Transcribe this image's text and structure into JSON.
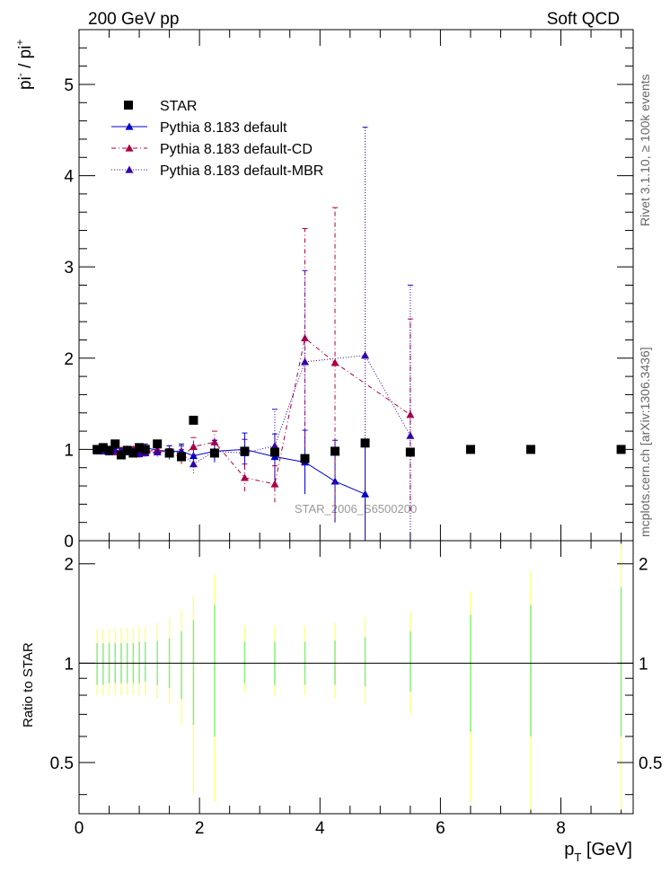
{
  "header": {
    "left_title": "200 GeV pp",
    "right_title": "Soft QCD",
    "side_rivet": "Rivet 3.1.10, ≥ 100k events",
    "side_mcplots": "mcplots.cern.ch [arXiv:1306.3436]",
    "watermark": "STAR_2006_S6500200"
  },
  "colors": {
    "data": "#000000",
    "default": "#0000cc",
    "cd": "#aa0044",
    "mbr": "#3300aa",
    "band_yellow": "#ffff88",
    "band_green": "#88ee88"
  },
  "chart_data": [
    {
      "type": "scatter",
      "name": "main",
      "ylabel_parts": [
        "pi",
        "-",
        " / pi",
        "+"
      ],
      "xlim": [
        0,
        9.2
      ],
      "ylim": [
        0,
        5.6
      ],
      "yticks": [
        0,
        1,
        2,
        3,
        4,
        5
      ],
      "ytick_labels": [
        "0",
        "1",
        "2",
        "3",
        "4",
        "5"
      ],
      "legend": [
        "STAR",
        "Pythia 8.183 default",
        "Pythia 8.183 default-CD",
        "Pythia 8.183 default-MBR"
      ],
      "series": [
        {
          "name": "STAR",
          "key": "data",
          "marker": "square",
          "x": [
            0.3,
            0.4,
            0.5,
            0.6,
            0.7,
            0.8,
            0.9,
            1.0,
            1.1,
            1.3,
            1.5,
            1.7,
            1.9,
            2.25,
            2.75,
            3.25,
            3.75,
            4.25,
            4.75,
            5.5,
            6.5,
            7.5,
            9.0
          ],
          "y": [
            1.0,
            1.02,
            0.99,
            1.06,
            0.94,
            0.99,
            0.96,
            1.02,
            1.0,
            1.06,
            0.96,
            0.92,
            1.32,
            0.96,
            0.98,
            0.97,
            0.9,
            0.98,
            1.07,
            0.97,
            1.0,
            1.0,
            1.0
          ]
        },
        {
          "name": "Pythia 8.183 default",
          "key": "default",
          "marker": "triangle",
          "dash": "",
          "x": [
            0.3,
            0.4,
            0.5,
            0.6,
            0.7,
            0.8,
            0.9,
            1.0,
            1.1,
            1.3,
            1.5,
            1.7,
            1.9,
            2.25,
            2.75,
            3.25,
            3.75,
            4.25,
            4.75
          ],
          "y": [
            0.98,
            0.99,
            1.0,
            0.99,
            0.98,
            1.0,
            0.99,
            1.0,
            1.02,
            0.99,
            0.98,
            0.98,
            0.93,
            0.98,
            1.0,
            0.92,
            0.86,
            0.65,
            0.51
          ],
          "err": [
            0.02,
            0.02,
            0.02,
            0.02,
            0.02,
            0.03,
            0.03,
            0.04,
            0.04,
            0.05,
            0.06,
            0.08,
            0.1,
            0.12,
            0.18,
            0.25,
            0.35,
            0.45,
            0.6
          ]
        },
        {
          "name": "Pythia 8.183 default-CD",
          "key": "cd",
          "marker": "triangle",
          "dash": "5,3,1,3",
          "x": [
            0.3,
            0.4,
            0.5,
            0.6,
            0.7,
            0.8,
            0.9,
            1.0,
            1.1,
            1.3,
            1.5,
            1.7,
            1.9,
            2.25,
            2.75,
            3.25,
            3.75,
            4.25,
            5.5
          ],
          "y": [
            0.99,
            0.98,
            1.0,
            0.97,
            0.99,
            0.98,
            1.0,
            0.96,
            0.97,
            1.0,
            0.95,
            0.92,
            1.03,
            1.08,
            0.69,
            0.62,
            2.22,
            1.95,
            1.38
          ],
          "err": [
            0.02,
            0.02,
            0.02,
            0.02,
            0.03,
            0.03,
            0.03,
            0.04,
            0.04,
            0.05,
            0.06,
            0.08,
            0.1,
            0.12,
            0.15,
            0.2,
            1.2,
            1.7,
            1.05
          ]
        },
        {
          "name": "Pythia 8.183 default-MBR",
          "key": "mbr",
          "marker": "triangle",
          "dash": "1,2",
          "x": [
            0.3,
            0.4,
            0.5,
            0.6,
            0.7,
            0.8,
            0.9,
            1.0,
            1.1,
            1.3,
            1.5,
            1.7,
            1.9,
            2.25,
            2.75,
            3.25,
            3.75,
            4.75,
            5.5
          ],
          "y": [
            0.98,
            0.98,
            0.97,
            0.99,
            0.98,
            0.97,
            0.98,
            0.95,
            0.96,
            0.97,
            0.98,
            0.96,
            0.84,
            0.98,
            0.96,
            1.04,
            1.96,
            2.03,
            1.15
          ],
          "err": [
            0.02,
            0.02,
            0.02,
            0.02,
            0.03,
            0.03,
            0.03,
            0.04,
            0.04,
            0.05,
            0.06,
            0.08,
            0.1,
            0.12,
            0.15,
            0.4,
            1.0,
            2.5,
            1.65
          ]
        }
      ]
    },
    {
      "type": "scatter",
      "name": "ratio",
      "ylabel": "Ratio to STAR",
      "xlabel": "p",
      "xlabel_sub": "T",
      "xlabel_unit": " [GeV]",
      "xlim": [
        0,
        9.2
      ],
      "ylim": [
        0.35,
        2.35
      ],
      "ytick_values": [
        0.5,
        1,
        2
      ],
      "ytick_labels": [
        "0.5",
        "1",
        "2"
      ],
      "xtick_values": [
        0,
        2,
        4,
        6,
        8
      ],
      "xtick_labels": [
        "0",
        "2",
        "4",
        "6",
        "8"
      ],
      "x": [
        0.3,
        0.4,
        0.5,
        0.6,
        0.7,
        0.8,
        0.9,
        1.0,
        1.1,
        1.3,
        1.5,
        1.7,
        1.9,
        2.25,
        2.75,
        3.25,
        3.75,
        4.25,
        4.75,
        5.5,
        6.5,
        7.5,
        9.0
      ],
      "band_low": [
        0.8,
        0.8,
        0.8,
        0.8,
        0.8,
        0.8,
        0.8,
        0.8,
        0.8,
        0.78,
        0.75,
        0.65,
        0.4,
        0.38,
        0.82,
        0.8,
        0.8,
        0.78,
        0.75,
        0.7,
        0.38,
        0.36,
        0.36
      ],
      "band_high": [
        1.27,
        1.27,
        1.27,
        1.27,
        1.28,
        1.28,
        1.28,
        1.29,
        1.3,
        1.32,
        1.37,
        1.45,
        1.6,
        1.85,
        1.3,
        1.3,
        1.3,
        1.32,
        1.38,
        1.43,
        1.65,
        1.9,
        2.3
      ],
      "green_low": [
        0.86,
        0.86,
        0.87,
        0.87,
        0.87,
        0.87,
        0.87,
        0.87,
        0.88,
        0.86,
        0.84,
        0.78,
        0.65,
        0.6,
        0.87,
        0.86,
        0.86,
        0.86,
        0.85,
        0.82,
        0.62,
        0.6,
        0.6
      ],
      "green_high": [
        1.15,
        1.15,
        1.15,
        1.15,
        1.15,
        1.15,
        1.15,
        1.16,
        1.16,
        1.17,
        1.19,
        1.25,
        1.35,
        1.5,
        1.16,
        1.16,
        1.16,
        1.17,
        1.2,
        1.25,
        1.4,
        1.5,
        1.7
      ]
    }
  ]
}
